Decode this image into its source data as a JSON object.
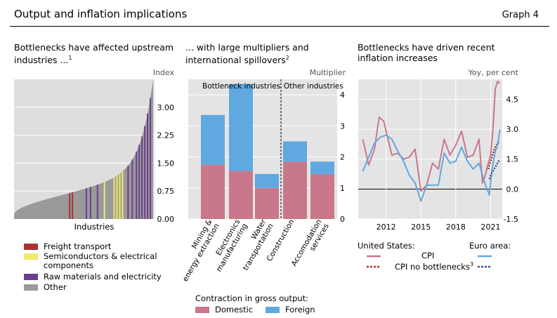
{
  "header": {
    "title": "Output and inflation implications",
    "graph_tag": "Graph 4"
  },
  "panels": {
    "left": {
      "title_line1": "Bottlenecks have affected upstream",
      "title_line2": "industries ...",
      "footnote": "1",
      "unit": "Index",
      "xlabel": "Industries"
    },
    "middle": {
      "title_line1": "... with large multipliers and",
      "title_line2": "international spillovers",
      "footnote": "2",
      "unit": "Multiplier"
    },
    "right": {
      "title_line1": "Bottlenecks have driven recent",
      "title_line2": "inflation increases",
      "unit": "Yoy, per cent"
    }
  },
  "legends": {
    "left": [
      {
        "label": "Freight transport",
        "color": "#a83232"
      },
      {
        "label": "Semiconductors & electrical",
        "label2": "components",
        "color": "#f2ea6a"
      },
      {
        "label": "Raw materials and electricity",
        "color": "#6a3f8f"
      },
      {
        "label": "Other",
        "color": "#9a9a9a"
      }
    ],
    "middle": {
      "heading": "Contraction in gross output:",
      "items": [
        {
          "label": "Domestic",
          "color": "#c8788a"
        },
        {
          "label": "Foreign",
          "color": "#5fa8e0"
        }
      ]
    },
    "right": {
      "us_label": "United States:",
      "ea_label": "Euro area:",
      "cpi_label": "CPI",
      "cpi_nb_label": "CPI no bottlenecks",
      "cpi_nb_footnote": "3"
    }
  },
  "chart_data": [
    {
      "type": "area",
      "xlabel": "Industries",
      "ylabel": "Index",
      "ylim": [
        0,
        3.75
      ],
      "yticks": [
        "0.00",
        "0.75",
        "1.50",
        "2.25",
        "3.00"
      ],
      "grid": true,
      "highlights": [
        {
          "group": "Freight transport",
          "color": "#a83232",
          "x_frac": [
            0.4,
            0.42
          ]
        },
        {
          "group": "Semiconductors & electrical components",
          "color": "#f2ea6a",
          "x_frac": [
            0.65,
            0.72,
            0.74,
            0.76,
            0.78
          ]
        },
        {
          "group": "Raw materials and electricity",
          "color": "#6a3f8f",
          "x_frac": [
            0.52,
            0.55,
            0.6,
            0.82,
            0.85,
            0.88,
            0.9,
            0.92,
            0.94,
            0.96,
            0.98
          ]
        }
      ]
    },
    {
      "type": "bar",
      "stacked": true,
      "ylabel": "Multiplier",
      "ylim": [
        0,
        4.5
      ],
      "yticks": [
        "0",
        "1",
        "2",
        "3",
        "4"
      ],
      "groups": [
        {
          "label": "Bottleneck industries",
          "count": 3
        },
        {
          "label": "Other industries",
          "count": 2
        }
      ],
      "categories": [
        "Mining & energy extraction",
        "Electronics manufacturing",
        "Water transportation",
        "Construction",
        "Accomodation services"
      ],
      "series": [
        {
          "name": "Domestic",
          "color": "#c8788a",
          "values": [
            1.75,
            1.55,
            1.0,
            1.85,
            1.45
          ]
        },
        {
          "name": "Foreign",
          "color": "#5fa8e0",
          "values": [
            1.6,
            2.8,
            0.45,
            0.65,
            0.4
          ]
        }
      ]
    },
    {
      "type": "line",
      "ylabel": "Yoy, per cent",
      "ylim": [
        -1.5,
        5.5
      ],
      "yticks": [
        "-1.5",
        "0.0",
        "1.5",
        "3.0",
        "4.5"
      ],
      "xticks": [
        "2012",
        "2015",
        "2018",
        "2021"
      ],
      "xlim": [
        2009.6,
        2022.0
      ],
      "series": [
        {
          "name": "CPI",
          "region": "United States",
          "style": "solid",
          "color": "#c8788a",
          "x": [
            2010.0,
            2010.5,
            2011.0,
            2011.4,
            2011.8,
            2012.0,
            2012.5,
            2013.0,
            2013.5,
            2014.0,
            2014.5,
            2015.0,
            2015.5,
            2016.0,
            2016.5,
            2017.0,
            2017.5,
            2018.0,
            2018.5,
            2019.0,
            2019.5,
            2020.0,
            2020.3,
            2020.5,
            2020.8,
            2021.0,
            2021.2,
            2021.4,
            2021.6,
            2021.8
          ],
          "y": [
            2.5,
            1.2,
            2.0,
            3.6,
            3.4,
            2.9,
            1.7,
            1.8,
            1.5,
            1.6,
            2.0,
            -0.1,
            0.2,
            1.3,
            1.0,
            2.5,
            1.7,
            2.2,
            2.9,
            1.6,
            1.7,
            2.5,
            0.3,
            0.6,
            1.3,
            1.7,
            3.0,
            5.0,
            5.4,
            5.3
          ]
        },
        {
          "name": "CPI no bottlenecks",
          "region": "United States",
          "style": "dotted",
          "color": "#a83232",
          "x": [
            2020.8,
            2021.0,
            2021.2,
            2021.4,
            2021.6,
            2021.8
          ],
          "y": [
            1.0,
            1.4,
            1.8,
            2.1,
            2.3,
            2.4
          ]
        },
        {
          "name": "CPI",
          "region": "Euro area",
          "style": "solid",
          "color": "#5fa8e0",
          "x": [
            2010.0,
            2010.5,
            2011.0,
            2011.5,
            2012.0,
            2012.5,
            2013.0,
            2013.5,
            2014.0,
            2014.5,
            2015.0,
            2015.5,
            2016.0,
            2016.5,
            2017.0,
            2017.5,
            2018.0,
            2018.5,
            2019.0,
            2019.5,
            2020.0,
            2020.5,
            2020.9,
            2021.1,
            2021.4,
            2021.6,
            2021.8
          ],
          "y": [
            0.9,
            1.6,
            2.3,
            2.6,
            2.7,
            2.5,
            1.9,
            1.4,
            0.7,
            0.3,
            -0.6,
            0.2,
            0.2,
            0.2,
            1.8,
            1.3,
            1.4,
            2.1,
            1.4,
            1.0,
            1.3,
            0.3,
            -0.3,
            0.9,
            1.9,
            2.2,
            3.0
          ]
        },
        {
          "name": "CPI no bottlenecks",
          "region": "Euro area",
          "style": "dotted",
          "color": "#2f4f8f",
          "x": [
            2020.9,
            2021.1,
            2021.3,
            2021.5,
            2021.7,
            2021.8
          ],
          "y": [
            0.5,
            0.8,
            1.0,
            1.2,
            1.4,
            1.5
          ]
        }
      ]
    }
  ]
}
